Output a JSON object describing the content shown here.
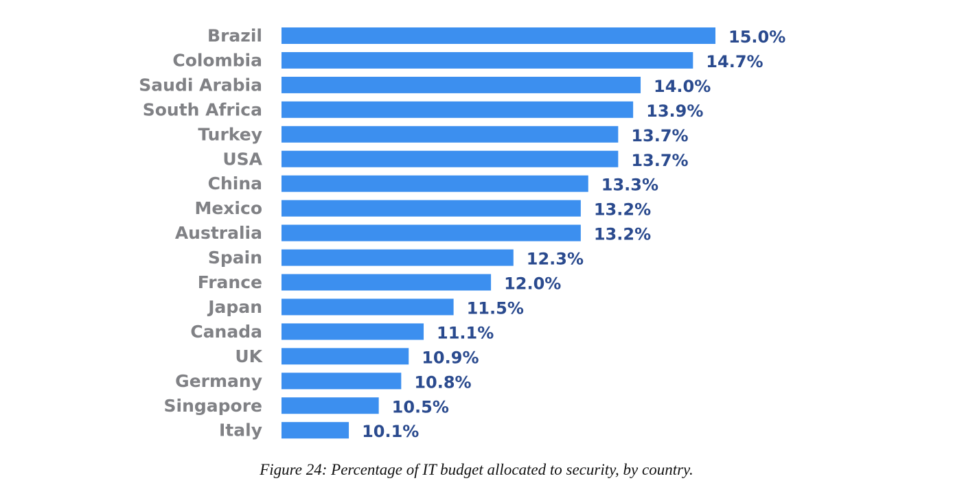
{
  "chart_data": {
    "type": "bar",
    "orientation": "horizontal",
    "categories": [
      "Brazil",
      "Colombia",
      "Saudi Arabia",
      "South Africa",
      "Turkey",
      "USA",
      "China",
      "Mexico",
      "Australia",
      "Spain",
      "France",
      "Japan",
      "Canada",
      "UK",
      "Germany",
      "Singapore",
      "Italy"
    ],
    "values": [
      15.0,
      14.7,
      14.0,
      13.9,
      13.7,
      13.7,
      13.3,
      13.2,
      13.2,
      12.3,
      12.0,
      11.5,
      11.1,
      10.9,
      10.8,
      10.5,
      10.1
    ],
    "value_labels": [
      "15.0%",
      "14.7%",
      "14.0%",
      "13.9%",
      "13.7%",
      "13.7%",
      "13.3%",
      "13.2%",
      "13.2%",
      "12.3%",
      "12.0%",
      "11.5%",
      "11.1%",
      "10.9%",
      "10.8%",
      "10.5%",
      "10.1%"
    ],
    "xlim": [
      9.2,
      15.0
    ],
    "title": "",
    "xlabel": "",
    "ylabel": "",
    "grid": false,
    "bar_color": "#3c8fef",
    "value_label_color": "#2a4a8e",
    "category_label_color": "#808185"
  },
  "caption": "Figure 24: Percentage of IT budget allocated to security, by country."
}
